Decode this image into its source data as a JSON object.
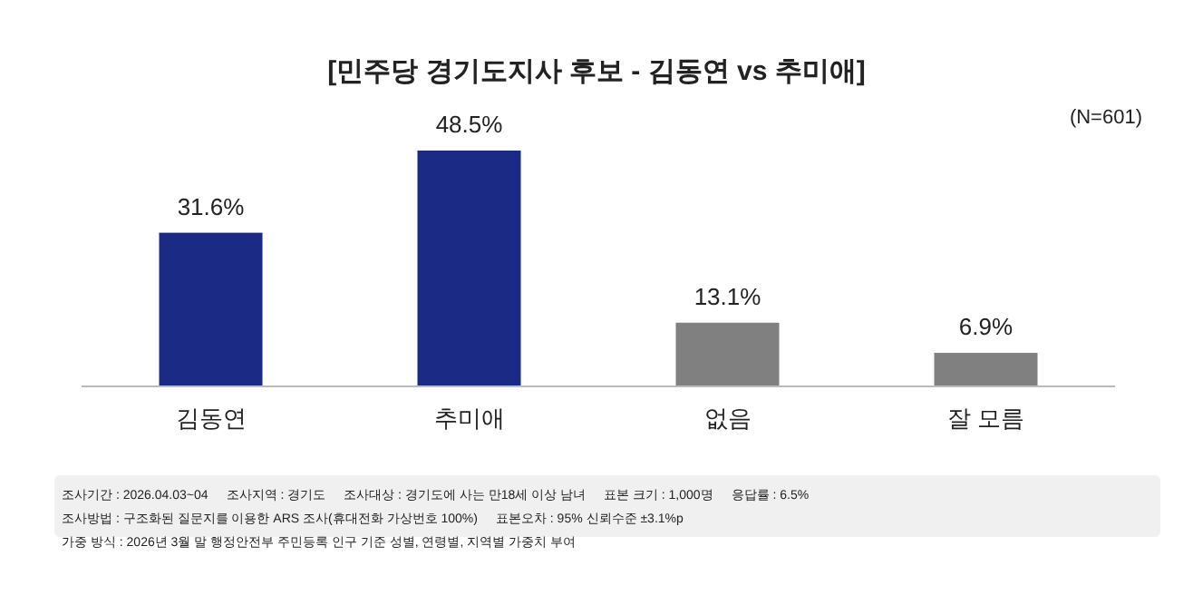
{
  "chart_data": {
    "type": "bar",
    "title": "[민주당 경기도지사 후보 - 김동연 vs 추미애]",
    "categories": [
      "김동연",
      "추미애",
      "없음",
      "잘 모름"
    ],
    "values": [
      31.6,
      48.5,
      13.1,
      6.9
    ],
    "colors": [
      "#1b2a84",
      "#1b2a84",
      "#808080",
      "#808080"
    ],
    "value_labels": [
      "31.6%",
      "48.5%",
      "13.1%",
      "6.9%"
    ],
    "annotations": [
      "(N=601)",
      "조사기간 : 2026.04.03~04",
      "조사지역 : 경기도",
      "조사대상 : 경기도에 사는 만18세 이상 남녀",
      "표본 크기 : 1,000명",
      "응답률 : 6.5%",
      "조사방법 : 구조화된 질문지를 이용한 ARS 조사(휴대전화 가상번호 100%)",
      "표본오차 : 95% 신뢰수준 ±3.1%p",
      "가중 방식 : 2026년 3월 말 행정안전부 주민등록 인구 기준 성별, 연령별, 지역별 가중치 부여"
    ]
  }
}
